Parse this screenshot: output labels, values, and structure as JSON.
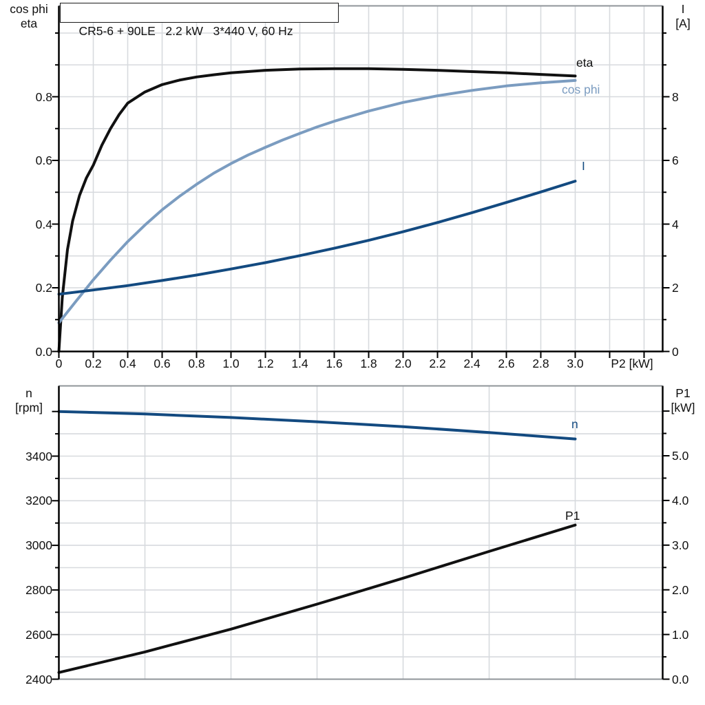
{
  "title": "CR5-6 + 90LE   2.2 kW   3*440 V, 60 Hz",
  "colors": {
    "black_curve": "#111111",
    "steel_blue": "#7b9cc0",
    "navy": "#134a80",
    "grid": "#d7dade",
    "frame": "#8f9499",
    "axis": "#000000",
    "text": "#111111"
  },
  "chart_data": [
    {
      "id": "motor-curves-top",
      "type": "line",
      "x_axis": {
        "label": "P2 [kW]",
        "range": [
          0,
          3.5
        ],
        "grid_step": 0.2,
        "major_ticks": [
          [
            0,
            "0"
          ],
          [
            0.2,
            "0.2"
          ],
          [
            0.4,
            "0.4"
          ],
          [
            0.6,
            "0.6"
          ],
          [
            0.8,
            "0.8"
          ],
          [
            1,
            "1.0"
          ],
          [
            1.2,
            "1.2"
          ],
          [
            1.4,
            "1.4"
          ],
          [
            1.6,
            "1.6"
          ],
          [
            1.8,
            "1.8"
          ],
          [
            2,
            "2.0"
          ],
          [
            2.2,
            "2.2"
          ],
          [
            2.4,
            "2.4"
          ],
          [
            2.6,
            "2.6"
          ],
          [
            2.8,
            "2.8"
          ],
          [
            3,
            "3.0"
          ]
        ],
        "extra_ticks": [
          3.2,
          3.4
        ]
      },
      "y_left": {
        "title_lines": [
          "cos phi",
          "eta"
        ],
        "range": [
          0,
          1.09
        ],
        "grid_step": 0.1,
        "major_ticks": [
          [
            0,
            "0.0"
          ],
          [
            0.2,
            "0.2"
          ],
          [
            0.4,
            "0.4"
          ],
          [
            0.6,
            "0.6"
          ],
          [
            0.8,
            "0.8"
          ]
        ],
        "minor_ticks": [
          0.1,
          0.3,
          0.5,
          0.7,
          0.9,
          1.0
        ]
      },
      "y_right": {
        "title_lines": [
          "I",
          "[A]"
        ],
        "range": [
          0,
          10.9
        ],
        "major_ticks": [
          [
            0,
            "0"
          ],
          [
            2,
            "2"
          ],
          [
            4,
            "4"
          ],
          [
            6,
            "6"
          ],
          [
            8,
            "8"
          ]
        ],
        "minor_ticks": [
          1,
          3,
          5,
          7,
          9,
          10
        ]
      },
      "series": [
        {
          "name": "eta",
          "axis": "left",
          "color_key": "black_curve",
          "points": [
            [
              0,
              0
            ],
            [
              0.02,
              0.17
            ],
            [
              0.05,
              0.32
            ],
            [
              0.08,
              0.41
            ],
            [
              0.12,
              0.49
            ],
            [
              0.16,
              0.545
            ],
            [
              0.2,
              0.585
            ],
            [
              0.25,
              0.648
            ],
            [
              0.3,
              0.7
            ],
            [
              0.35,
              0.744
            ],
            [
              0.4,
              0.78
            ],
            [
              0.5,
              0.815
            ],
            [
              0.6,
              0.838
            ],
            [
              0.7,
              0.852
            ],
            [
              0.8,
              0.862
            ],
            [
              0.9,
              0.869
            ],
            [
              1,
              0.875
            ],
            [
              1.2,
              0.883
            ],
            [
              1.4,
              0.887
            ],
            [
              1.6,
              0.888
            ],
            [
              1.8,
              0.888
            ],
            [
              2,
              0.886
            ],
            [
              2.2,
              0.883
            ],
            [
              2.4,
              0.879
            ],
            [
              2.6,
              0.875
            ],
            [
              2.8,
              0.87
            ],
            [
              3,
              0.865
            ]
          ]
        },
        {
          "name": "cos phi",
          "axis": "left",
          "color_key": "steel_blue",
          "points": [
            [
              0,
              0.09
            ],
            [
              0.1,
              0.158
            ],
            [
              0.2,
              0.225
            ],
            [
              0.3,
              0.287
            ],
            [
              0.4,
              0.345
            ],
            [
              0.5,
              0.397
            ],
            [
              0.6,
              0.445
            ],
            [
              0.7,
              0.487
            ],
            [
              0.8,
              0.525
            ],
            [
              0.9,
              0.56
            ],
            [
              1,
              0.59
            ],
            [
              1.1,
              0.617
            ],
            [
              1.2,
              0.641
            ],
            [
              1.3,
              0.664
            ],
            [
              1.4,
              0.685
            ],
            [
              1.5,
              0.705
            ],
            [
              1.6,
              0.723
            ],
            [
              1.8,
              0.755
            ],
            [
              2,
              0.782
            ],
            [
              2.2,
              0.803
            ],
            [
              2.4,
              0.82
            ],
            [
              2.6,
              0.834
            ],
            [
              2.8,
              0.844
            ],
            [
              3,
              0.851
            ]
          ]
        },
        {
          "name": "I",
          "axis": "right",
          "color_key": "navy",
          "points": [
            [
              0,
              1.8
            ],
            [
              0.2,
              1.93
            ],
            [
              0.4,
              2.07
            ],
            [
              0.6,
              2.23
            ],
            [
              0.8,
              2.4
            ],
            [
              1,
              2.59
            ],
            [
              1.2,
              2.79
            ],
            [
              1.4,
              3.01
            ],
            [
              1.6,
              3.24
            ],
            [
              1.8,
              3.49
            ],
            [
              2,
              3.76
            ],
            [
              2.2,
              4.05
            ],
            [
              2.4,
              4.36
            ],
            [
              2.6,
              4.68
            ],
            [
              2.8,
              5.01
            ],
            [
              3,
              5.35
            ]
          ]
        }
      ]
    },
    {
      "id": "motor-curves-bottom",
      "type": "line",
      "x_axis": {
        "label": "",
        "range": [
          0,
          3.5
        ],
        "grid_step": 0.5,
        "major_ticks": [],
        "extra_ticks": []
      },
      "y_left": {
        "title_lines": [
          "n",
          "[rpm]"
        ],
        "range": [
          2400,
          3715
        ],
        "grid_step": 100,
        "major_ticks": [
          [
            2400,
            "2400"
          ],
          [
            2600,
            "2600"
          ],
          [
            2800,
            "2800"
          ],
          [
            3000,
            "3000"
          ],
          [
            3200,
            "3200"
          ],
          [
            3400,
            "3400"
          ],
          [
            3600,
            ""
          ]
        ],
        "minor_ticks": [
          2500,
          2700,
          2900,
          3100,
          3300,
          3500
        ]
      },
      "y_right": {
        "title_lines": [
          "P1",
          "[kW]"
        ],
        "range": [
          0,
          6.56
        ],
        "major_ticks": [
          [
            0,
            "0.0"
          ],
          [
            1,
            "1.0"
          ],
          [
            2,
            "2.0"
          ],
          [
            3,
            "3.0"
          ],
          [
            4,
            "4.0"
          ],
          [
            5,
            "5.0"
          ],
          [
            6,
            ""
          ]
        ],
        "minor_ticks": [
          0.5,
          1.5,
          2.5,
          3.5,
          4.5,
          5.5
        ]
      },
      "series": [
        {
          "name": "n",
          "axis": "left",
          "color_key": "navy",
          "points": [
            [
              0,
              3600
            ],
            [
              0.5,
              3589
            ],
            [
              1,
              3573
            ],
            [
              1.5,
              3554
            ],
            [
              2,
              3532
            ],
            [
              2.5,
              3506
            ],
            [
              3,
              3477
            ]
          ]
        },
        {
          "name": "P1",
          "axis": "right",
          "color_key": "black_curve",
          "points": [
            [
              0,
              0.15
            ],
            [
              0.5,
              0.61
            ],
            [
              1,
              1.12
            ],
            [
              1.5,
              1.68
            ],
            [
              2,
              2.26
            ],
            [
              2.5,
              2.86
            ],
            [
              3,
              3.45
            ]
          ]
        }
      ]
    }
  ]
}
